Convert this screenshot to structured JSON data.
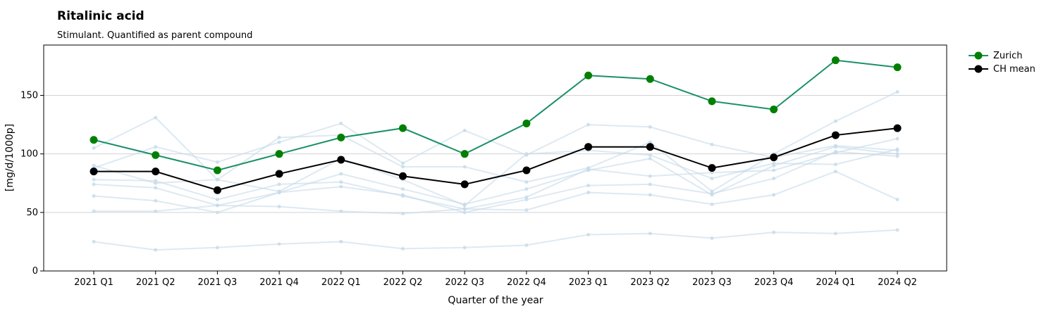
{
  "chart_data": {
    "type": "line",
    "title": "Ritalinic acid",
    "subtitle": "Stimulant. Quantified as parent compound",
    "xlabel": "Quarter of the year",
    "ylabel": "[mg/d/1000p]",
    "ylim": [
      0,
      193
    ],
    "yticks": [
      0,
      50,
      100,
      150
    ],
    "grid": true,
    "legend_position": "top-right",
    "categories": [
      "2021 Q1",
      "2021 Q2",
      "2021 Q3",
      "2021 Q4",
      "2022 Q1",
      "2022 Q2",
      "2022 Q3",
      "2022 Q4",
      "2023 Q1",
      "2023 Q2",
      "2023 Q3",
      "2023 Q4",
      "2024 Q1",
      "2024 Q2"
    ],
    "series": [
      {
        "name": "Zurich",
        "color": "#1a9068",
        "marker_color": "#008000",
        "highlight": true,
        "values": [
          112,
          99,
          86,
          100,
          114,
          122,
          100,
          126,
          167,
          164,
          145,
          138,
          180,
          174
        ]
      },
      {
        "name": "CH mean",
        "color": "#000000",
        "marker_color": "#000000",
        "highlight": true,
        "values": [
          85,
          85,
          69,
          83,
          95,
          81,
          74,
          86,
          106,
          106,
          88,
          97,
          116,
          122
        ]
      }
    ],
    "background_series": {
      "color": "#c6dbea",
      "values": [
        [
          105,
          131,
          78,
          114,
          116,
          89,
          89,
          76,
          88,
          110,
          68,
          100,
          128,
          153
        ],
        [
          88,
          106,
          93,
          110,
          126,
          92,
          120,
          99,
          125,
          123,
          108,
          97,
          107,
          103
        ],
        [
          90,
          75,
          78,
          68,
          96,
          78,
          56,
          100,
          103,
          99,
          79,
          92,
          91,
          104
        ],
        [
          78,
          77,
          61,
          74,
          76,
          64,
          53,
          63,
          87,
          81,
          84,
          86,
          101,
          113
        ],
        [
          74,
          71,
          56,
          67,
          72,
          65,
          50,
          61,
          73,
          74,
          66,
          79,
          102,
          98
        ],
        [
          64,
          60,
          50,
          67,
          83,
          70,
          57,
          70,
          86,
          96,
          65,
          90,
          106,
          100
        ],
        [
          51,
          51,
          56,
          55,
          51,
          49,
          53,
          52,
          67,
          65,
          57,
          65,
          85,
          61
        ],
        [
          25,
          18,
          20,
          23,
          25,
          19,
          20,
          22,
          31,
          32,
          28,
          33,
          32,
          35
        ]
      ]
    }
  }
}
